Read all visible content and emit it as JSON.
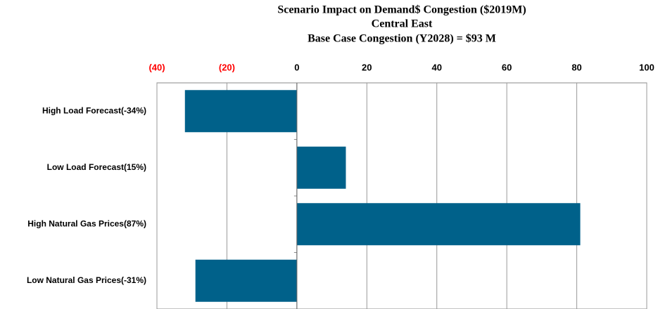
{
  "chart_data": {
    "type": "barh",
    "title": "Scenario Impact on Demand$ Congestion ($2019M)",
    "subtitle": "Central East",
    "annotation": "Base Case Congestion (Y2028) = $93 M",
    "categories": [
      "High Load Forecast(-34%)",
      "Low Load Forecast(15%)",
      "High Natural Gas Prices(87%)",
      "Low Natural Gas Prices(-31%)"
    ],
    "values": [
      -32,
      14,
      81,
      -29
    ],
    "color": "#00618a",
    "xlim": [
      -40,
      100
    ],
    "xticks": [
      {
        "value": -40,
        "label": "(40)"
      },
      {
        "value": -20,
        "label": "(20)"
      },
      0,
      20,
      40,
      60,
      80,
      100
    ],
    "negative_tick_color": "#ff0000",
    "grid": true
  }
}
